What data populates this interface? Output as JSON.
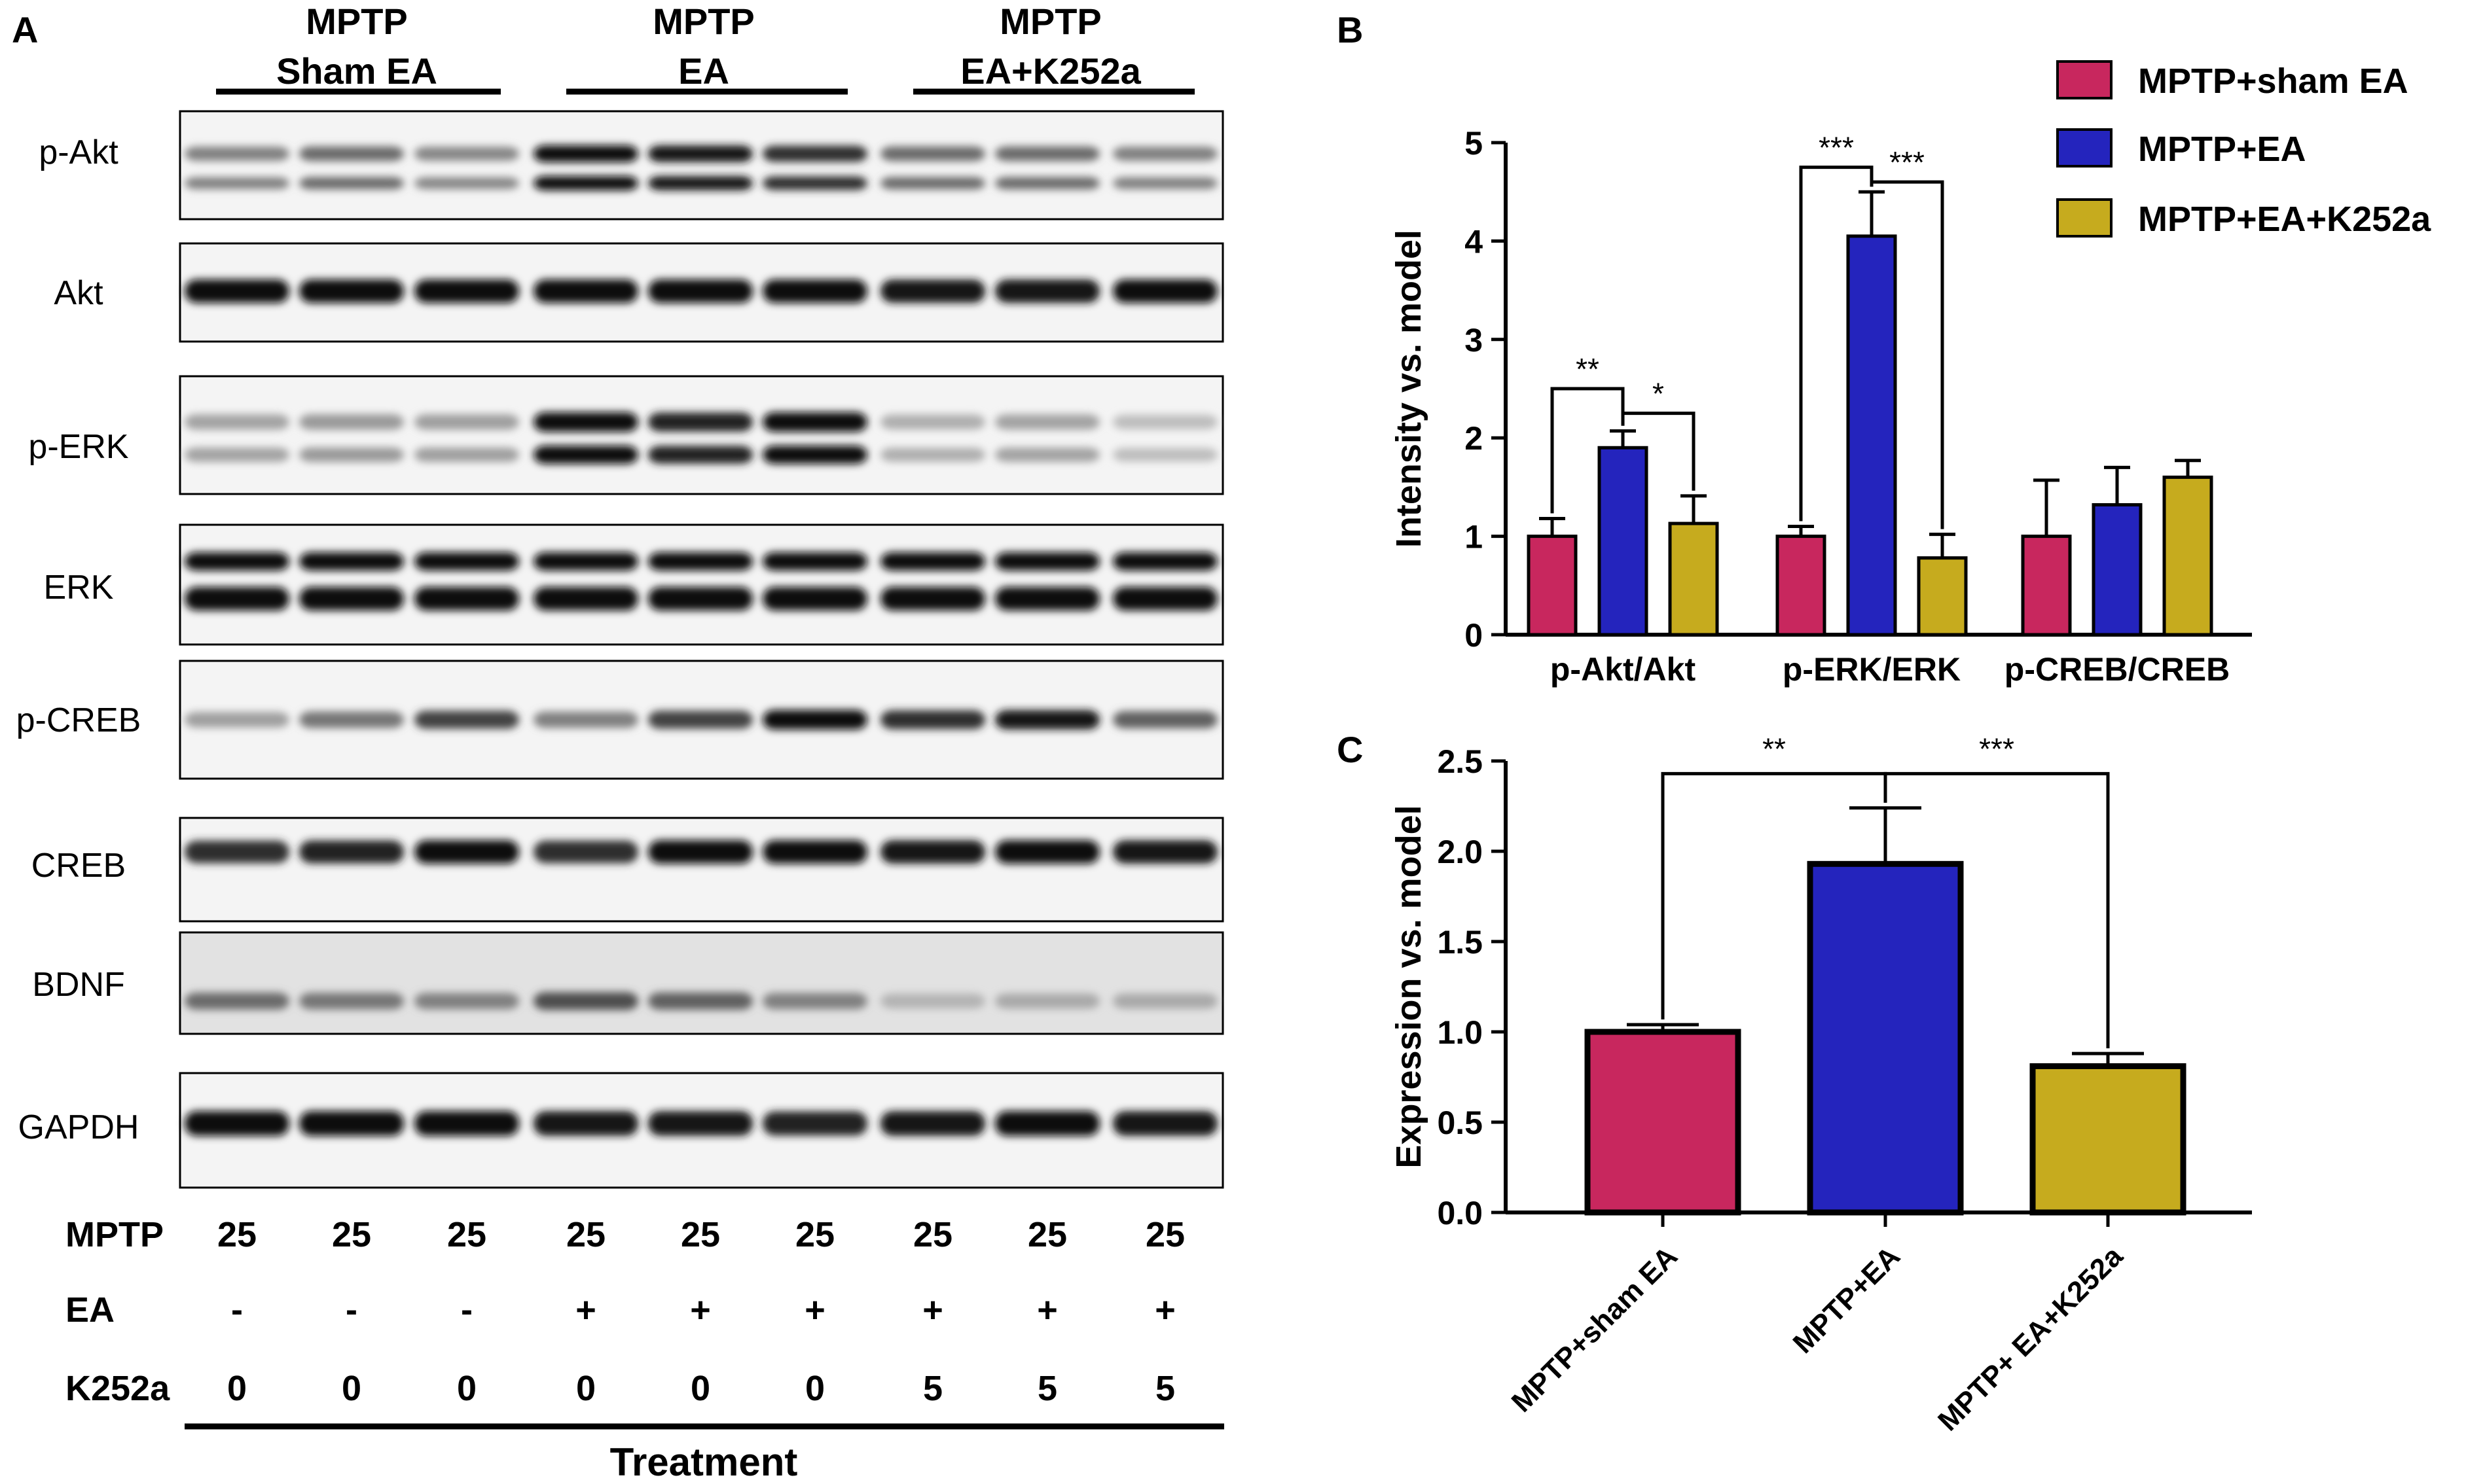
{
  "panel_a": {
    "letter": "A",
    "groups": [
      {
        "line1": "MPTP",
        "line2": "Sham EA"
      },
      {
        "line1": "MPTP",
        "line2": "EA"
      },
      {
        "line1": "MPTP",
        "line2": "EA+K252a"
      }
    ],
    "blots": [
      {
        "label": "p-Akt",
        "bands": [
          0.45,
          0.55,
          0.42,
          1.0,
          0.95,
          0.85,
          0.55,
          0.55,
          0.45
        ]
      },
      {
        "label": "Akt",
        "bands": [
          1.0,
          1.0,
          1.0,
          1.0,
          1.0,
          1.0,
          0.95,
          0.98,
          1.0
        ]
      },
      {
        "label": "p-ERK",
        "bands": [
          0.28,
          0.32,
          0.3,
          1.0,
          0.9,
          1.0,
          0.22,
          0.28,
          0.15
        ]
      },
      {
        "label": "ERK",
        "bands": [
          1.0,
          1.0,
          1.0,
          1.0,
          1.0,
          1.0,
          1.0,
          1.0,
          1.0
        ]
      },
      {
        "label": "p-CREB",
        "bands": [
          0.3,
          0.5,
          0.75,
          0.45,
          0.75,
          1.0,
          0.85,
          0.95,
          0.6
        ]
      },
      {
        "label": "CREB",
        "bands": [
          0.85,
          0.9,
          1.0,
          0.85,
          1.0,
          1.0,
          0.95,
          1.0,
          0.95
        ]
      },
      {
        "label": "BDNF",
        "bands": [
          0.55,
          0.5,
          0.45,
          0.7,
          0.6,
          0.45,
          0.2,
          0.25,
          0.25
        ]
      },
      {
        "label": "GAPDH",
        "bands": [
          1.0,
          1.0,
          1.0,
          0.95,
          0.95,
          0.9,
          0.95,
          1.0,
          0.95
        ]
      }
    ],
    "treatment_rows": [
      {
        "name": "MPTP",
        "values": [
          "25",
          "25",
          "25",
          "25",
          "25",
          "25",
          "25",
          "25",
          "25"
        ]
      },
      {
        "name": "EA",
        "values": [
          "-",
          "-",
          "-",
          "+",
          "+",
          "+",
          "+",
          "+",
          "+"
        ]
      },
      {
        "name": "K252a",
        "values": [
          "0",
          "0",
          "0",
          "0",
          "0",
          "0",
          "5",
          "5",
          "5"
        ]
      }
    ],
    "treatment_label": "Treatment"
  },
  "chart_data": [
    {
      "id": "B",
      "letter": "B",
      "type": "bar",
      "categories": [
        "p-Akt/Akt",
        "p-ERK/ERK",
        "p-CREB/CREB"
      ],
      "ylabel": "Intensity vs. model",
      "ylim": [
        0,
        5
      ],
      "yticks": [
        0,
        1,
        2,
        3,
        4,
        5
      ],
      "series": [
        {
          "name": "MPTP+sham EA",
          "color": "#c8275e",
          "values": [
            1.0,
            1.0,
            1.0
          ],
          "errors": [
            0.18,
            0.1,
            0.57
          ]
        },
        {
          "name": "MPTP+EA",
          "color": "#2424bd",
          "values": [
            1.9,
            4.05,
            1.32
          ],
          "errors": [
            0.17,
            0.45,
            0.38
          ]
        },
        {
          "name": "MPTP+EA+K252a",
          "color": "#c6ab1e",
          "values": [
            1.13,
            0.78,
            1.6
          ],
          "errors": [
            0.28,
            0.24,
            0.17
          ]
        }
      ],
      "legend": "top-right",
      "significance": [
        {
          "category": 0,
          "from": 0,
          "to": 1,
          "label": "**"
        },
        {
          "category": 0,
          "from": 1,
          "to": 2,
          "label": "*"
        },
        {
          "category": 1,
          "from": 0,
          "to": 1,
          "label": "***"
        },
        {
          "category": 1,
          "from": 1,
          "to": 2,
          "label": "***"
        }
      ]
    },
    {
      "id": "C",
      "letter": "C",
      "type": "bar",
      "categories": [
        "MPTP+sham EA",
        "MPTP+EA",
        "MPTP+ EA+K252a"
      ],
      "values": [
        1.0,
        1.93,
        0.81
      ],
      "errors": [
        0.04,
        0.31,
        0.07
      ],
      "colors": [
        "#c8275e",
        "#2424bd",
        "#c6ab1e"
      ],
      "ylabel": "Expression vs. model",
      "ylim": [
        0,
        2.5
      ],
      "yticks": [
        "0.0",
        "0.5",
        "1.0",
        "1.5",
        "2.0",
        "2.5"
      ],
      "significance": [
        {
          "from": 0,
          "to": 1,
          "label": "**"
        },
        {
          "from": 1,
          "to": 2,
          "label": "***"
        }
      ]
    }
  ]
}
